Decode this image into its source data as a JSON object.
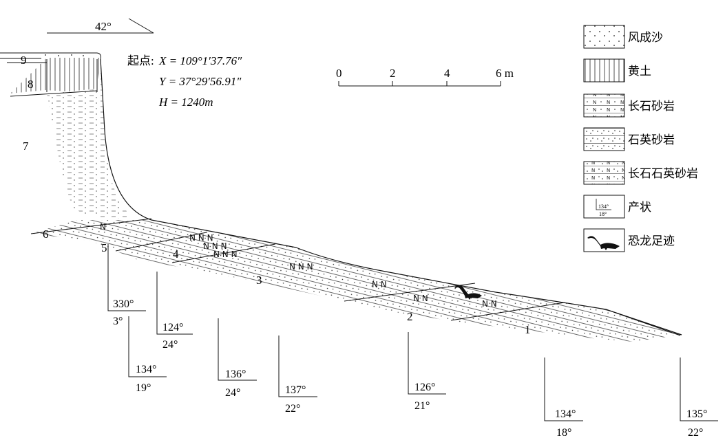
{
  "direction": "42°",
  "start_point": {
    "label": "起点:",
    "x": "X = 109°1′37.76″",
    "y": "Y = 37°29′56.91″",
    "h": "H = 1240m"
  },
  "scale": {
    "ticks": [
      "0",
      "2",
      "4",
      "6 m"
    ]
  },
  "layers": [
    "9",
    "8",
    "7",
    "6",
    "5",
    "4",
    "3",
    "2",
    "1"
  ],
  "attitudes": [
    {
      "az": "330°",
      "dip": "3°"
    },
    {
      "az": "124°",
      "dip": "24°"
    },
    {
      "az": "134°",
      "dip": "19°"
    },
    {
      "az": "136°",
      "dip": "24°"
    },
    {
      "az": "137°",
      "dip": "22°"
    },
    {
      "az": "126°",
      "dip": "21°"
    },
    {
      "az": "134°",
      "dip": "18°"
    },
    {
      "az": "135°",
      "dip": "22°"
    }
  ],
  "legend": [
    {
      "key": "aeolian-sand",
      "label": "风成沙"
    },
    {
      "key": "loess",
      "label": "黄土"
    },
    {
      "key": "arkose",
      "label": "长石砂岩"
    },
    {
      "key": "quartz-sandstone",
      "label": "石英砂岩"
    },
    {
      "key": "arkosic-quartz-sandstone",
      "label": "长石石英砂岩"
    },
    {
      "key": "attitude",
      "label": "产状",
      "sample_az": "134°",
      "sample_dip": "18°"
    },
    {
      "key": "dinosaur-track",
      "label": "恐龙足迹"
    }
  ]
}
